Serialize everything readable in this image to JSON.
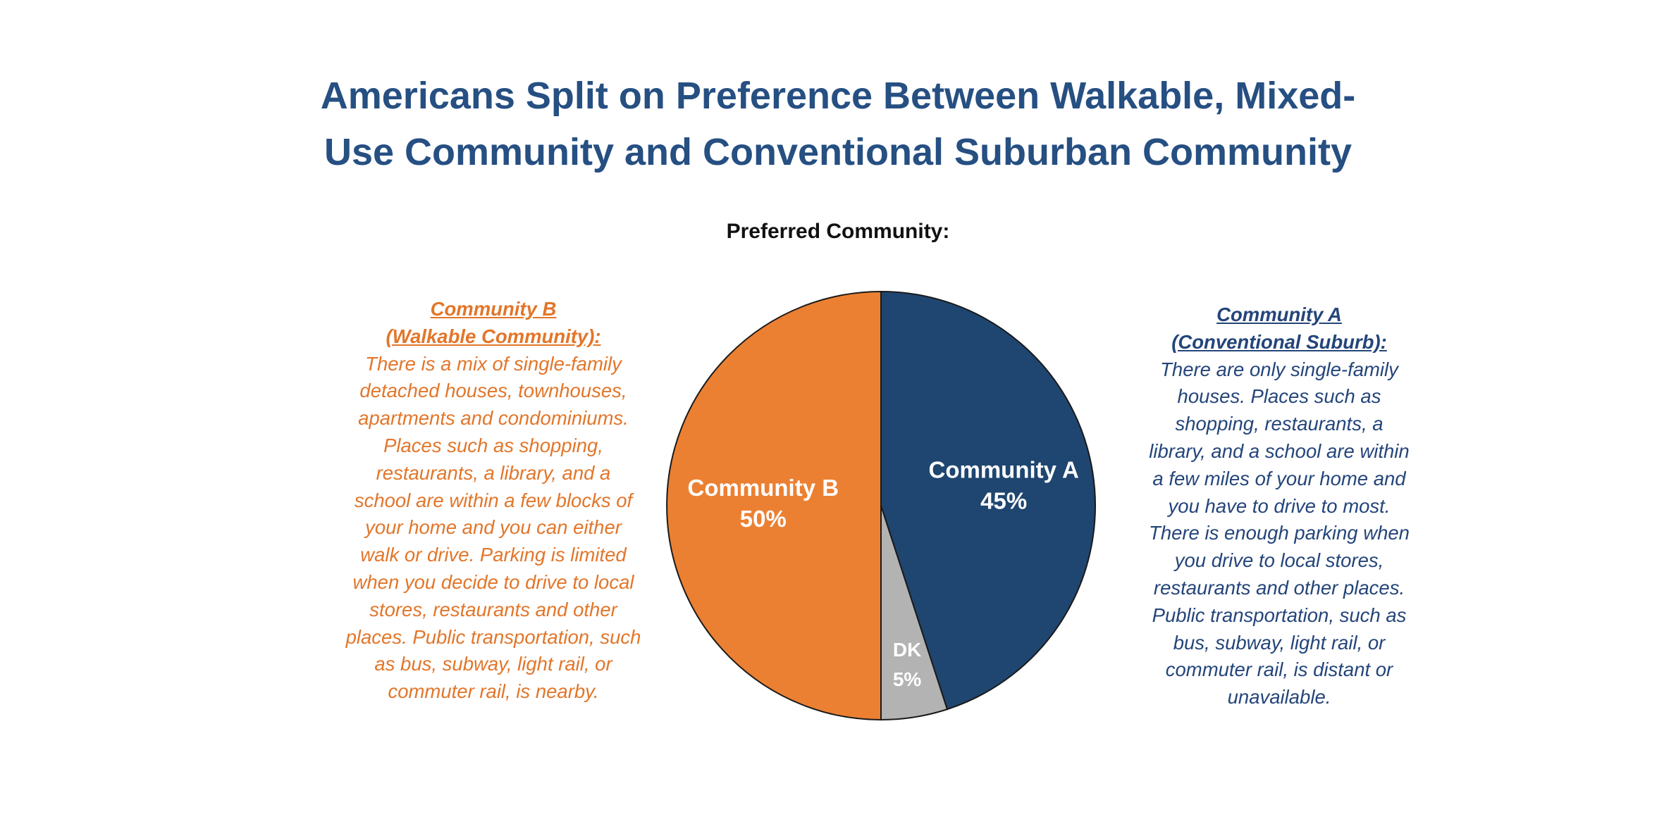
{
  "title": {
    "line1": "Americans Split on Preference Between Walkable, Mixed-",
    "line2": "Use Community and Conventional Suburban Community"
  },
  "subtitle": "Preferred Community:",
  "community_b": {
    "head1": "Community B",
    "head2": "(Walkable Community):",
    "lines": [
      "There is a mix of single-family",
      "detached houses, townhouses,",
      "apartments and condominiums.",
      "Places such as shopping,",
      "restaurants, a library, and a",
      "school are within a few blocks of",
      "your home and you can either",
      "walk or drive. Parking is limited",
      "when you decide to drive to local",
      "stores, restaurants and other",
      "places. Public transportation, such",
      "as bus, subway, light rail, or",
      "commuter rail, is nearby."
    ]
  },
  "community_a": {
    "head1": "Community A",
    "head2": "(Conventional Suburb):",
    "lines": [
      "There are only single-family",
      "houses. Places such as",
      "shopping, restaurants, a",
      "library, and a school are within",
      "a few miles of your home and",
      "you have to drive to most.",
      "There is enough parking when",
      "you drive to local stores,",
      "restaurants and other places.",
      "Public transportation, such as",
      "bus, subway, light rail, or",
      "commuter rail, is distant or",
      "unavailable."
    ]
  },
  "chart_data": {
    "type": "pie",
    "title": "Preferred Community:",
    "slices": [
      {
        "label": "Community A",
        "value": 45,
        "value_label": "45%",
        "color": "#1f4670",
        "text_color": "#ffffff"
      },
      {
        "label": "DK",
        "value": 5,
        "value_label": "5%",
        "color": "#b3b3b3",
        "text_color": "#ffffff"
      },
      {
        "label": "Community B",
        "value": 50,
        "value_label": "50%",
        "color": "#ec8032",
        "text_color": "#ffffff"
      }
    ]
  }
}
